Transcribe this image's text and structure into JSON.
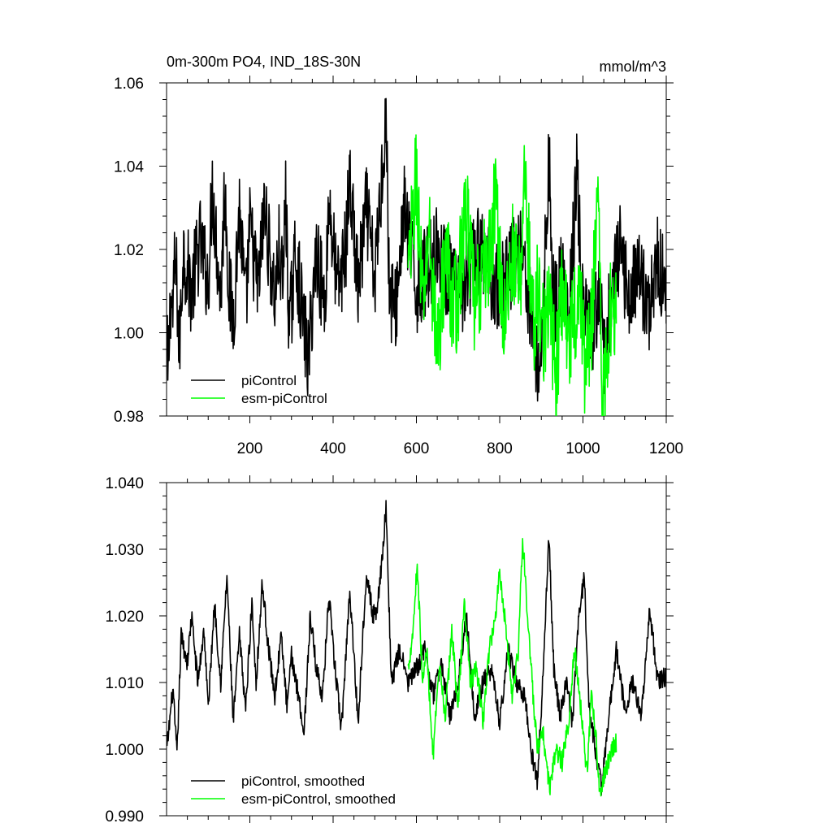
{
  "figure": {
    "title_left": "0m-300m PO4, IND_18S-30N",
    "title_right": "mmol/m^3"
  },
  "chart_data": [
    {
      "type": "line",
      "title": "0m-300m PO4, IND_18S-30N",
      "units": "mmol/m^3",
      "xlim": [
        0,
        1200
      ],
      "ylim": [
        0.98,
        1.06
      ],
      "x_ticks": [
        200,
        400,
        600,
        800,
        1000,
        1200
      ],
      "x_tick_labels": [
        "200",
        "400",
        "600",
        "800",
        "1000",
        "1200"
      ],
      "y_ticks": [
        0.98,
        1.0,
        1.02,
        1.04,
        1.06
      ],
      "y_tick_labels": [
        "0.98",
        "1.00",
        "1.02",
        "1.04",
        "1.06"
      ],
      "legend_position": "bottom-left",
      "series": [
        {
          "name": "piControl",
          "color": "#000000",
          "x_start": 1,
          "x_end": 1200,
          "keypoints": [
            [
              1,
              0.999
            ],
            [
              3,
              0.988
            ],
            [
              10,
              1.009
            ],
            [
              15,
              1.005
            ],
            [
              20,
              1.016
            ],
            [
              25,
              1.012
            ],
            [
              30,
              0.994
            ],
            [
              40,
              1.02
            ],
            [
              60,
              1.01
            ],
            [
              80,
              1.022
            ],
            [
              100,
              1.012
            ],
            [
              110,
              1.035
            ],
            [
              130,
              1.008
            ],
            [
              140,
              1.036
            ],
            [
              150,
              1.01
            ],
            [
              160,
              1.003
            ],
            [
              175,
              1.03
            ],
            [
              190,
              1.005
            ],
            [
              200,
              1.025
            ],
            [
              220,
              1.01
            ],
            [
              235,
              1.03
            ],
            [
              260,
              1.008
            ],
            [
              270,
              1.02
            ],
            [
              280,
              1.01
            ],
            [
              285,
              1.035
            ],
            [
              295,
              1.0
            ],
            [
              310,
              1.02
            ],
            [
              320,
              1.01
            ],
            [
              340,
              0.993
            ],
            [
              360,
              1.02
            ],
            [
              380,
              1.006
            ],
            [
              390,
              1.032
            ],
            [
              410,
              1.01
            ],
            [
              430,
              1.02
            ],
            [
              440,
              1.037
            ],
            [
              460,
              1.01
            ],
            [
              480,
              1.03
            ],
            [
              500,
              1.012
            ],
            [
              515,
              1.035
            ],
            [
              527,
              1.053
            ],
            [
              535,
              1.01
            ],
            [
              550,
              1.005
            ],
            [
              570,
              1.03
            ],
            [
              600,
              1.01
            ],
            [
              650,
              1.02
            ],
            [
              700,
              1.008
            ],
            [
              750,
              1.02
            ],
            [
              800,
              1.01
            ],
            [
              850,
              1.022
            ],
            [
              880,
              1.002
            ],
            [
              895,
              0.988
            ],
            [
              910,
              1.02
            ],
            [
              918,
              1.043
            ],
            [
              930,
              1.005
            ],
            [
              950,
              1.015
            ],
            [
              965,
              1.0
            ],
            [
              985,
              1.038
            ],
            [
              1000,
              1.005
            ],
            [
              1020,
              0.998
            ],
            [
              1040,
              1.01
            ],
            [
              1050,
              0.993
            ],
            [
              1070,
              1.01
            ],
            [
              1090,
              1.02
            ],
            [
              1110,
              1.008
            ],
            [
              1130,
              1.015
            ],
            [
              1160,
              1.006
            ],
            [
              1180,
              1.018
            ],
            [
              1200,
              1.01
            ]
          ],
          "noise_amplitude": 0.011
        },
        {
          "name": "esm-piControl",
          "color": "#00ff00",
          "x_start": 580,
          "x_end": 1080,
          "keypoints": [
            [
              580,
              1.012
            ],
            [
              600,
              1.038
            ],
            [
              615,
              1.005
            ],
            [
              630,
              1.025
            ],
            [
              650,
              0.995
            ],
            [
              670,
              1.02
            ],
            [
              690,
              1.005
            ],
            [
              700,
              1.01
            ],
            [
              720,
              1.03
            ],
            [
              740,
              1.005
            ],
            [
              760,
              1.015
            ],
            [
              780,
              1.02
            ],
            [
              790,
              1.035
            ],
            [
              810,
              1.0
            ],
            [
              830,
              1.02
            ],
            [
              850,
              1.01
            ],
            [
              857,
              1.04
            ],
            [
              870,
              1.02
            ],
            [
              880,
              1.0
            ],
            [
              890,
              1.01
            ],
            [
              905,
              1.0
            ],
            [
              920,
              1.005
            ],
            [
              935,
              0.99
            ],
            [
              950,
              1.01
            ],
            [
              970,
              0.998
            ],
            [
              990,
              1.012
            ],
            [
              1005,
              0.992
            ],
            [
              1020,
              1.0
            ],
            [
              1035,
              1.038
            ],
            [
              1045,
              0.99
            ],
            [
              1050,
              0.982
            ],
            [
              1060,
              1.0
            ],
            [
              1070,
              1.01
            ],
            [
              1080,
              1.005
            ]
          ],
          "noise_amplitude": 0.013
        }
      ]
    },
    {
      "type": "line",
      "xlim": [
        0,
        1200
      ],
      "ylim": [
        0.99,
        1.04
      ],
      "y_ticks": [
        0.99,
        1.0,
        1.01,
        1.02,
        1.03,
        1.04
      ],
      "y_tick_labels": [
        "0.990",
        "1.000",
        "1.010",
        "1.020",
        "1.030",
        "1.040"
      ],
      "legend_position": "bottom-left",
      "series": [
        {
          "name": "piControl, smoothed",
          "color": "#000000",
          "x_start": 1,
          "x_end": 1200,
          "keypoints": [
            [
              1,
              1.0
            ],
            [
              15,
              1.009
            ],
            [
              25,
              0.999
            ],
            [
              35,
              1.017
            ],
            [
              50,
              1.013
            ],
            [
              60,
              1.02
            ],
            [
              75,
              1.01
            ],
            [
              90,
              1.018
            ],
            [
              100,
              1.006
            ],
            [
              115,
              1.022
            ],
            [
              130,
              1.01
            ],
            [
              145,
              1.026
            ],
            [
              160,
              1.004
            ],
            [
              175,
              1.017
            ],
            [
              190,
              1.006
            ],
            [
              205,
              1.022
            ],
            [
              215,
              1.01
            ],
            [
              230,
              1.025
            ],
            [
              245,
              1.015
            ],
            [
              260,
              1.008
            ],
            [
              275,
              1.017
            ],
            [
              290,
              1.006
            ],
            [
              300,
              1.014
            ],
            [
              320,
              1.007
            ],
            [
              330,
              1.002
            ],
            [
              345,
              1.02
            ],
            [
              360,
              1.012
            ],
            [
              375,
              1.008
            ],
            [
              390,
              1.023
            ],
            [
              400,
              1.015
            ],
            [
              420,
              1.003
            ],
            [
              440,
              1.024
            ],
            [
              460,
              1.004
            ],
            [
              480,
              1.027
            ],
            [
              495,
              1.02
            ],
            [
              505,
              1.021
            ],
            [
              515,
              1.027
            ],
            [
              527,
              1.036
            ],
            [
              540,
              1.01
            ],
            [
              560,
              1.015
            ],
            [
              580,
              1.01
            ],
            [
              600,
              1.012
            ],
            [
              620,
              1.015
            ],
            [
              640,
              1.008
            ],
            [
              660,
              1.013
            ],
            [
              680,
              1.005
            ],
            [
              700,
              1.01
            ],
            [
              720,
              1.02
            ],
            [
              740,
              1.005
            ],
            [
              760,
              1.01
            ],
            [
              780,
              1.012
            ],
            [
              800,
              1.004
            ],
            [
              820,
              1.015
            ],
            [
              840,
              1.01
            ],
            [
              860,
              1.008
            ],
            [
              875,
              1.0
            ],
            [
              890,
              0.995
            ],
            [
              905,
              1.012
            ],
            [
              918,
              1.032
            ],
            [
              930,
              1.012
            ],
            [
              945,
              1.005
            ],
            [
              960,
              1.01
            ],
            [
              975,
              1.004
            ],
            [
              990,
              1.02
            ],
            [
              1003,
              1.026
            ],
            [
              1015,
              1.006
            ],
            [
              1030,
              1.0
            ],
            [
              1045,
              0.994
            ],
            [
              1060,
              1.004
            ],
            [
              1080,
              1.015
            ],
            [
              1100,
              1.006
            ],
            [
              1120,
              1.01
            ],
            [
              1140,
              1.005
            ],
            [
              1160,
              1.021
            ],
            [
              1180,
              1.01
            ],
            [
              1200,
              1.011
            ]
          ],
          "noise_amplitude": 0.0025
        },
        {
          "name": "esm-piControl, smoothed",
          "color": "#00ff00",
          "x_start": 580,
          "x_end": 1080,
          "keypoints": [
            [
              580,
              1.012
            ],
            [
              592,
              1.018
            ],
            [
              602,
              1.028
            ],
            [
              615,
              1.01
            ],
            [
              625,
              1.015
            ],
            [
              640,
              0.999
            ],
            [
              655,
              1.012
            ],
            [
              670,
              1.005
            ],
            [
              685,
              1.018
            ],
            [
              700,
              1.006
            ],
            [
              715,
              1.022
            ],
            [
              730,
              1.01
            ],
            [
              745,
              1.012
            ],
            [
              760,
              1.004
            ],
            [
              775,
              1.015
            ],
            [
              790,
              1.02
            ],
            [
              800,
              1.027
            ],
            [
              815,
              1.018
            ],
            [
              830,
              1.008
            ],
            [
              845,
              1.015
            ],
            [
              855,
              1.032
            ],
            [
              865,
              1.022
            ],
            [
              880,
              1.008
            ],
            [
              890,
              1.0
            ],
            [
              905,
              1.002
            ],
            [
              920,
              0.994
            ],
            [
              935,
              1.0
            ],
            [
              950,
              0.998
            ],
            [
              965,
              1.004
            ],
            [
              980,
              1.015
            ],
            [
              995,
              1.006
            ],
            [
              1010,
              0.996
            ],
            [
              1020,
              1.008
            ],
            [
              1030,
              1.003
            ],
            [
              1040,
              0.993
            ],
            [
              1050,
              0.996
            ],
            [
              1060,
              0.998
            ],
            [
              1070,
              1.0
            ],
            [
              1080,
              1.001
            ]
          ],
          "noise_amplitude": 0.0025
        }
      ]
    }
  ]
}
